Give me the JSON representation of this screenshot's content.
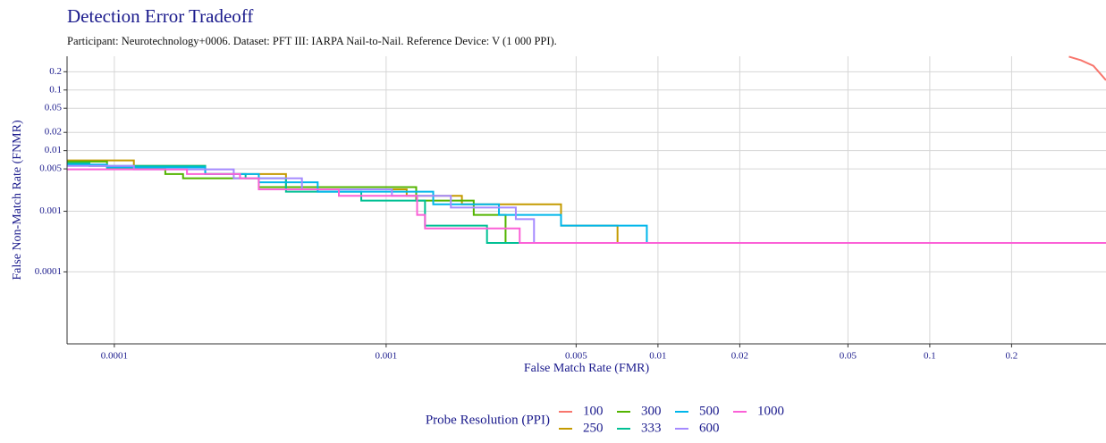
{
  "chart_data": {
    "type": "line",
    "title": "Detection Error Tradeoff",
    "subtitle": "Participant: Neurotechnology+0006. Dataset: PFT III: IARPA Nail-to-Nail. Reference Device: V (1 000 PPI).",
    "x_label": "False Match Rate (FMR)",
    "y_label": "False Non-Match Rate (FNMR)",
    "legend_title": "Probe Resolution (PPI)",
    "x_scale": "log",
    "y_scale": "log",
    "grid": true,
    "xlim": [
      6.7e-05,
      0.445
    ],
    "ylim": [
      6.5e-06,
      0.36
    ],
    "xticks": [
      0.0001,
      0.001,
      0.005,
      0.01,
      0.02,
      0.05,
      0.1,
      0.2
    ],
    "yticks": [
      0.0001,
      0.001,
      0.005,
      0.01,
      0.02,
      0.05,
      0.1,
      0.2
    ],
    "series": [
      {
        "name": "100",
        "color": "#F8766D",
        "x": [
          0.325,
          0.36,
          0.4,
          0.445
        ],
        "values": [
          0.355,
          0.31,
          0.25,
          0.145
        ]
      },
      {
        "name": "250",
        "color": "#C49A00",
        "x": [
          6.7e-05,
          0.000118,
          0.000118,
          0.000216,
          0.000216,
          0.000428,
          0.000428,
          0.00119,
          0.00119,
          0.0019,
          0.0019,
          0.0044,
          0.0044,
          0.0071,
          0.0071,
          0.445
        ],
        "values": [
          0.0069,
          0.0069,
          0.0056,
          0.0056,
          0.0041,
          0.0041,
          0.0023,
          0.0023,
          0.0018,
          0.0018,
          0.0013,
          0.0013,
          0.00058,
          0.00058,
          0.0003,
          0.0003
        ]
      },
      {
        "name": "300",
        "color": "#53B400",
        "x": [
          6.7e-05,
          9.4e-05,
          9.4e-05,
          0.000154,
          0.000154,
          0.000179,
          0.000179,
          0.00034,
          0.00034,
          0.00129,
          0.00129,
          0.0021,
          0.0021,
          0.00275,
          0.00275,
          0.0031
        ],
        "values": [
          0.0066,
          0.0066,
          0.005,
          0.005,
          0.0041,
          0.0041,
          0.0035,
          0.0035,
          0.0025,
          0.0025,
          0.0015,
          0.0015,
          0.00087,
          0.00087,
          0.0003,
          0.0003
        ]
      },
      {
        "name": "333",
        "color": "#00C094",
        "x": [
          6.7e-05,
          8.1e-05,
          8.1e-05,
          0.000216,
          0.000216,
          0.000304,
          0.000304,
          0.000428,
          0.000428,
          0.00081,
          0.00081,
          0.00139,
          0.00139,
          0.00235,
          0.00235,
          0.0031
        ],
        "values": [
          0.0062,
          0.0062,
          0.0056,
          0.0056,
          0.0041,
          0.0041,
          0.0035,
          0.0035,
          0.0021,
          0.0021,
          0.0015,
          0.0015,
          0.00058,
          0.00058,
          0.0003,
          0.0003
        ]
      },
      {
        "name": "500",
        "color": "#00B6EB",
        "x": [
          6.7e-05,
          9.4e-05,
          9.4e-05,
          0.000216,
          0.000216,
          0.00034,
          0.00034,
          0.00056,
          0.00056,
          0.00149,
          0.00149,
          0.0026,
          0.0026,
          0.0044,
          0.0044,
          0.0091,
          0.0091
        ],
        "values": [
          0.0059,
          0.0059,
          0.0053,
          0.0053,
          0.0041,
          0.0041,
          0.003,
          0.003,
          0.0021,
          0.0021,
          0.0013,
          0.0013,
          0.00087,
          0.00087,
          0.00058,
          0.00058,
          0.0003
        ]
      },
      {
        "name": "600",
        "color": "#A58AFF",
        "x": [
          6.7e-05,
          0.000118,
          0.000118,
          0.000275,
          0.000275,
          0.00049,
          0.00049,
          0.00105,
          0.00105,
          0.00173,
          0.00173,
          0.003,
          0.003,
          0.0035,
          0.0035
        ],
        "values": [
          0.0056,
          0.0056,
          0.0049,
          0.0049,
          0.0035,
          0.0035,
          0.0023,
          0.0023,
          0.0018,
          0.0018,
          0.00115,
          0.00115,
          0.00074,
          0.00074,
          0.0003
        ]
      },
      {
        "name": "1000",
        "color": "#FB61D7",
        "x": [
          6.7e-05,
          0.000185,
          0.000185,
          0.00029,
          0.00029,
          0.00034,
          0.00034,
          0.00067,
          0.00067,
          0.0013,
          0.0013,
          0.00139,
          0.00139,
          0.0031,
          0.0031,
          0.445
        ],
        "values": [
          0.0049,
          0.0049,
          0.0041,
          0.0041,
          0.0035,
          0.0035,
          0.0023,
          0.0023,
          0.0018,
          0.0018,
          0.00087,
          0.00087,
          0.00052,
          0.00052,
          0.0003,
          0.0003
        ]
      }
    ]
  }
}
